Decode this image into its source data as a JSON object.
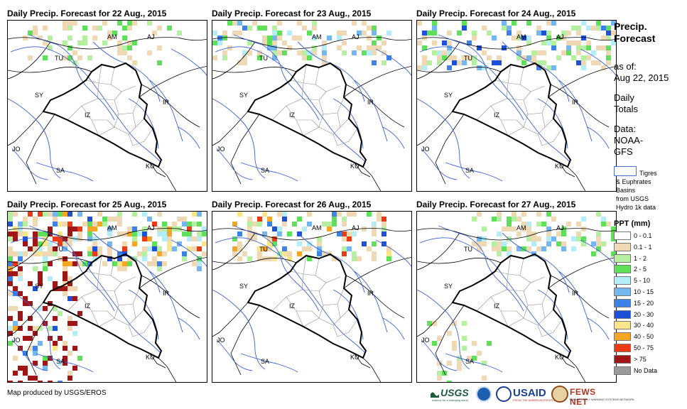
{
  "panels": [
    {
      "title": "Daily Precip. Forecast for 22 Aug., 2015",
      "date": "22 Aug., 2015"
    },
    {
      "title": "Daily Precip. Forecast for 23 Aug., 2015",
      "date": "23 Aug., 2015"
    },
    {
      "title": "Daily Precip. Forecast for 24 Aug., 2015",
      "date": "24 Aug., 2015"
    },
    {
      "title": "Daily Precip. Forecast for 25 Aug., 2015",
      "date": "25 Aug., 2015"
    },
    {
      "title": "Daily Precip. Forecast for 26 Aug., 2015",
      "date": "26 Aug., 2015"
    },
    {
      "title": "Daily Precip. Forecast for 27 Aug., 2015",
      "date": "27 Aug., 2015"
    }
  ],
  "country_labels": [
    "AM",
    "AJ",
    "TU",
    "SY",
    "IZ",
    "IR",
    "JO",
    "SA",
    "KU"
  ],
  "sidebar": {
    "title_line1": "Precip.",
    "title_line2": "Forecast",
    "asof_label": "as of:",
    "asof_date": "Aug 22, 2015",
    "daily_line1": "Daily",
    "daily_line2": "Totals",
    "data_line1": "Data:",
    "data_line2": "NOAA-",
    "data_line3": "GFS",
    "basin_line1": "Tigres",
    "basin_line2": "& Euphrates",
    "basin_line3": "Basins",
    "basin_line4": "from USGS",
    "basin_line5": "Hydro 1k data"
  },
  "legend": {
    "title": "PPT (mm)",
    "items": [
      {
        "label": "0 - 0.1",
        "color": "#ffffff"
      },
      {
        "label": "0.1 - 1",
        "color": "#efd9b4"
      },
      {
        "label": "1 - 2",
        "color": "#b4f0a0"
      },
      {
        "label": "2 - 5",
        "color": "#5ee05a"
      },
      {
        "label": "5 - 10",
        "color": "#b4ecf8"
      },
      {
        "label": "10 - 15",
        "color": "#74b6f0"
      },
      {
        "label": "15 - 20",
        "color": "#3c82e8"
      },
      {
        "label": "20 - 30",
        "color": "#1e50d8"
      },
      {
        "label": "30 - 40",
        "color": "#fbe58a"
      },
      {
        "label": "40 - 50",
        "color": "#f5a623"
      },
      {
        "label": "50 - 75",
        "color": "#ec3a14"
      },
      {
        "label": "> 75",
        "color": "#a01616"
      },
      {
        "label": "No Data",
        "color": "#9a9a9a"
      }
    ]
  },
  "credit": "Map produced by USGS/EROS",
  "logos": {
    "usgs": "USGS",
    "usgs_tagline": "science for a changing world",
    "usaid": "USAID",
    "usaid_tagline": "FROM THE AMERICAN PEOPLE",
    "fews": "FEWS NET",
    "fews_tagline": "FAMINE EARLY WARNING SYSTEMS NETWORK"
  }
}
